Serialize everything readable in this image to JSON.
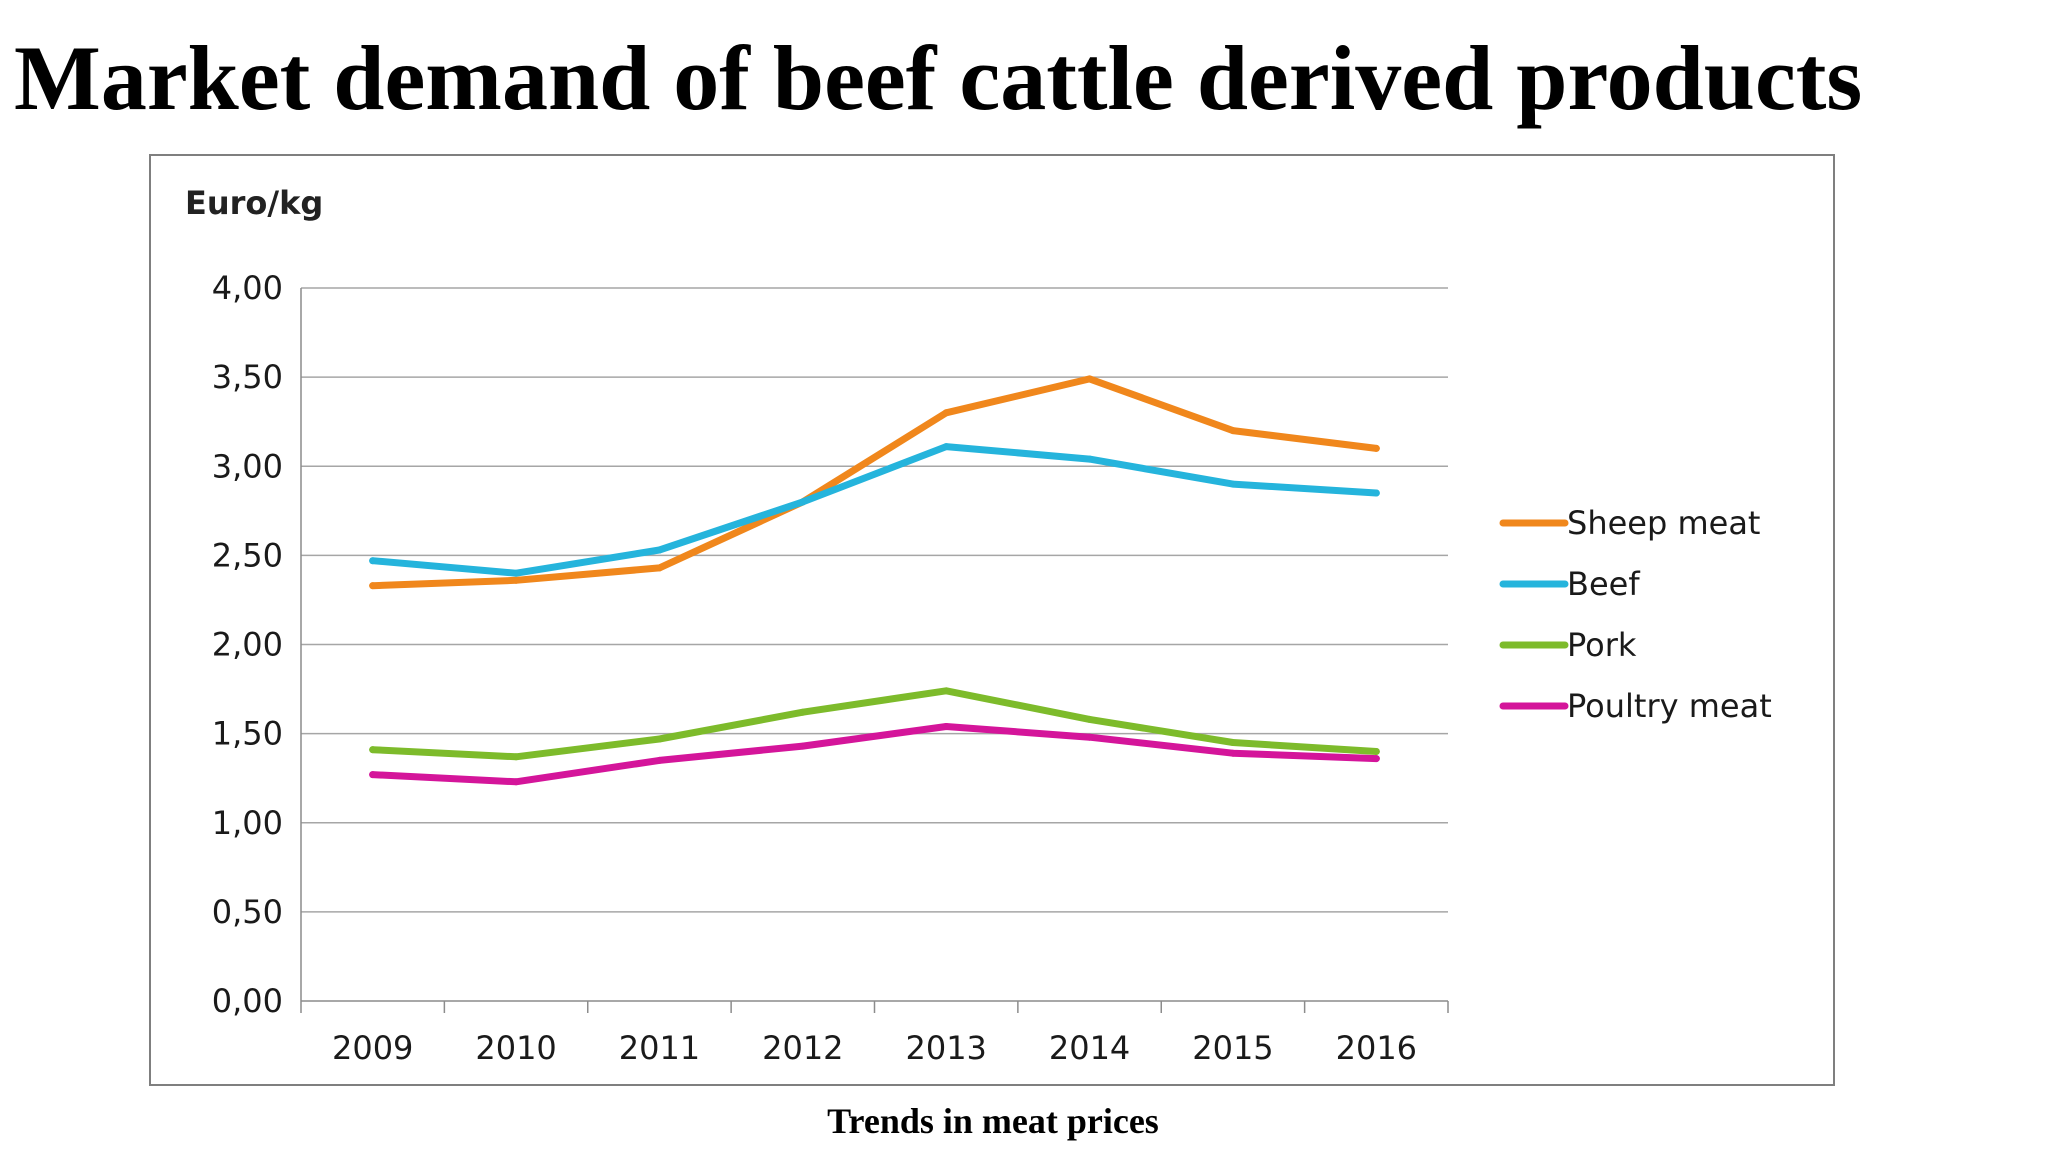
{
  "title": "Market demand of beef cattle derived products",
  "caption": "Trends in meat prices",
  "chart_data": {
    "type": "line",
    "ylabel": "Euro/kg",
    "xlabel": "",
    "x": [
      "2009",
      "2010",
      "2011",
      "2012",
      "2013",
      "2014",
      "2015",
      "2016"
    ],
    "ylim": [
      0,
      4
    ],
    "yticks": [
      "0,00",
      "0,50",
      "1,00",
      "1,50",
      "2,00",
      "2,50",
      "3,00",
      "3,50",
      "4,00"
    ],
    "ytick_values": [
      0,
      0.5,
      1,
      1.5,
      2,
      2.5,
      3,
      3.5,
      4
    ],
    "grid": true,
    "legend_position": "right",
    "series": [
      {
        "name": "Sheep meat",
        "color": "#f0871c",
        "values": [
          2.33,
          2.36,
          2.43,
          2.8,
          3.3,
          3.49,
          3.2,
          3.1
        ]
      },
      {
        "name": "Beef",
        "color": "#25b4dc",
        "values": [
          2.47,
          2.4,
          2.53,
          2.8,
          3.11,
          3.04,
          2.9,
          2.85
        ]
      },
      {
        "name": "Pork",
        "color": "#7dbb2b",
        "values": [
          1.41,
          1.37,
          1.47,
          1.62,
          1.74,
          1.58,
          1.45,
          1.4
        ]
      },
      {
        "name": "Poultry meat",
        "color": "#d4159a",
        "values": [
          1.27,
          1.23,
          1.35,
          1.43,
          1.54,
          1.48,
          1.39,
          1.36
        ]
      }
    ]
  }
}
